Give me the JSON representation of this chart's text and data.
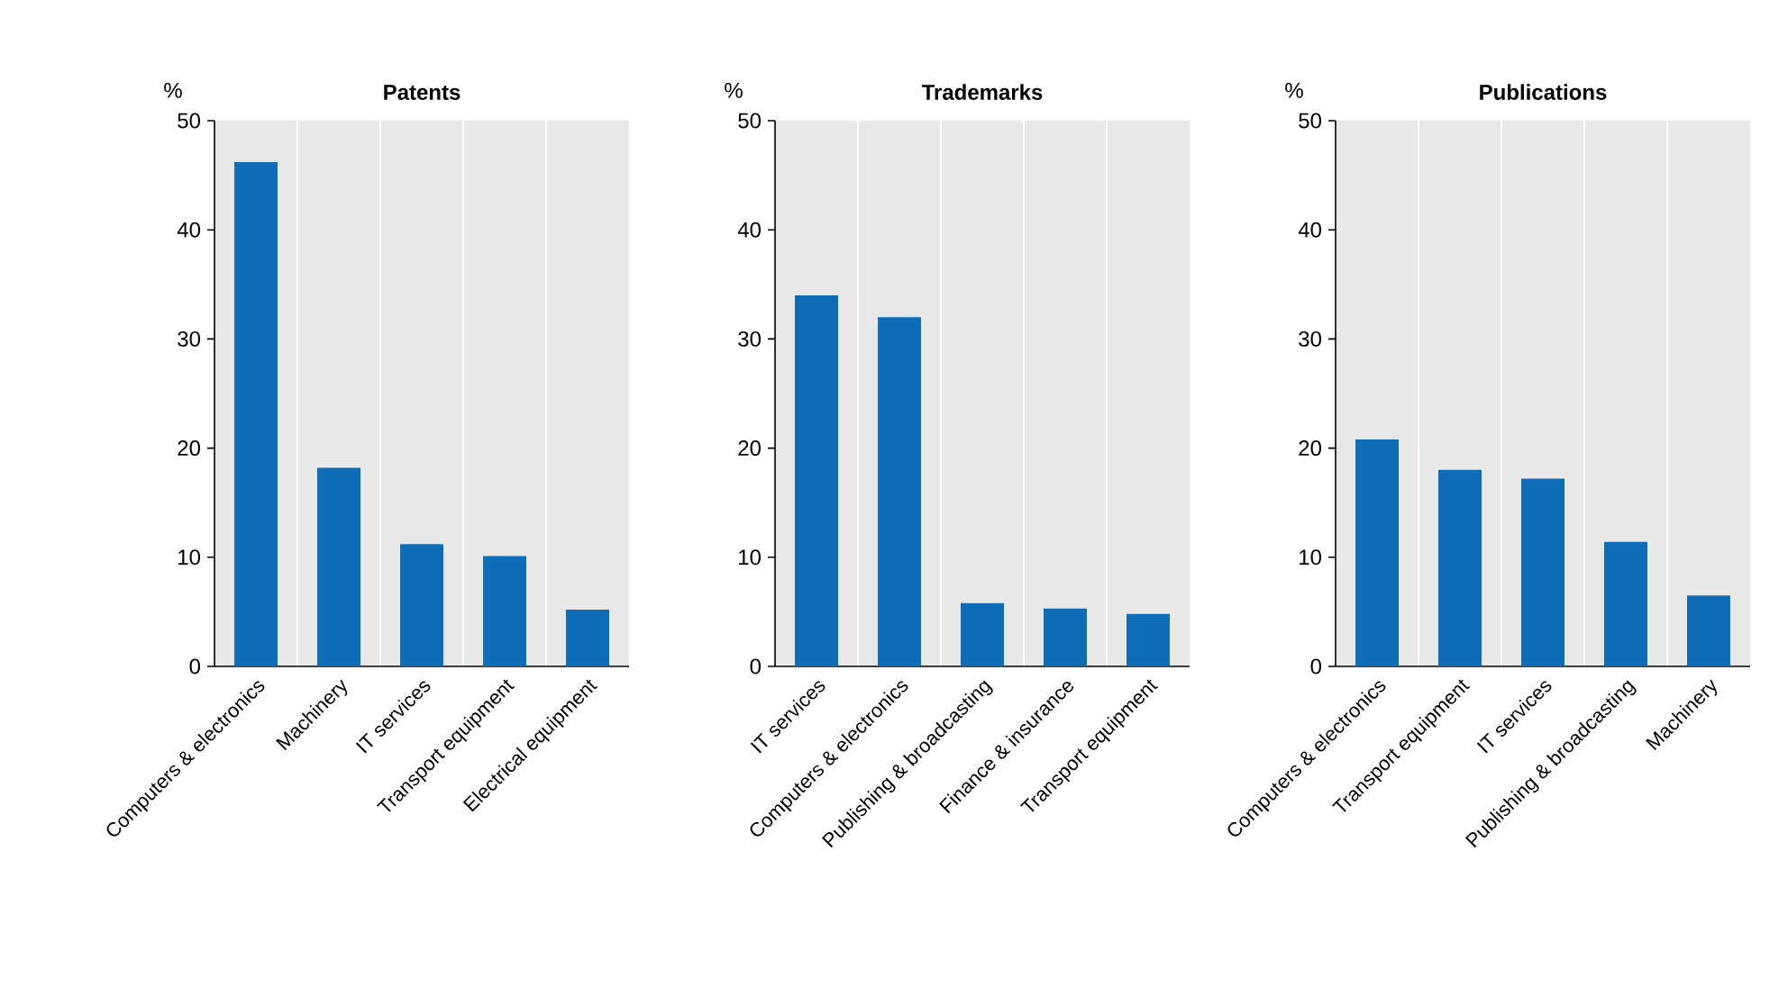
{
  "chart_data": [
    {
      "type": "bar",
      "title": "Patents",
      "ylabel": "%",
      "categories": [
        "Computers & electronics",
        "Machinery",
        "IT services",
        "Transport equipment",
        "Electrical equipment"
      ],
      "values": [
        46.2,
        18.2,
        11.2,
        10.1,
        5.2
      ],
      "color": "#0f6cb6",
      "ylim": [
        0,
        50
      ],
      "yticks": [
        0,
        10,
        20,
        30,
        40,
        50
      ],
      "grid": "x"
    },
    {
      "type": "bar",
      "title": "Trademarks",
      "ylabel": "%",
      "categories": [
        "IT services",
        "Computers & electronics",
        "Publishing & broadcasting",
        "Finance & insurance",
        "Transport equipment"
      ],
      "values": [
        34.0,
        32.0,
        5.8,
        5.3,
        4.8
      ],
      "color": "#0f6cb6",
      "ylim": [
        0,
        50
      ],
      "yticks": [
        0,
        10,
        20,
        30,
        40,
        50
      ],
      "grid": "x"
    },
    {
      "type": "bar",
      "title": "Publications",
      "ylabel": "%",
      "categories": [
        "Computers & electronics",
        "Transport equipment",
        "IT services",
        "Publishing & broadcasting",
        "Machinery"
      ],
      "values": [
        20.8,
        18.0,
        17.2,
        11.4,
        6.5
      ],
      "color": "#0f6cb6",
      "ylim": [
        0,
        50
      ],
      "yticks": [
        0,
        10,
        20,
        30,
        40,
        50
      ],
      "grid": "x"
    }
  ]
}
